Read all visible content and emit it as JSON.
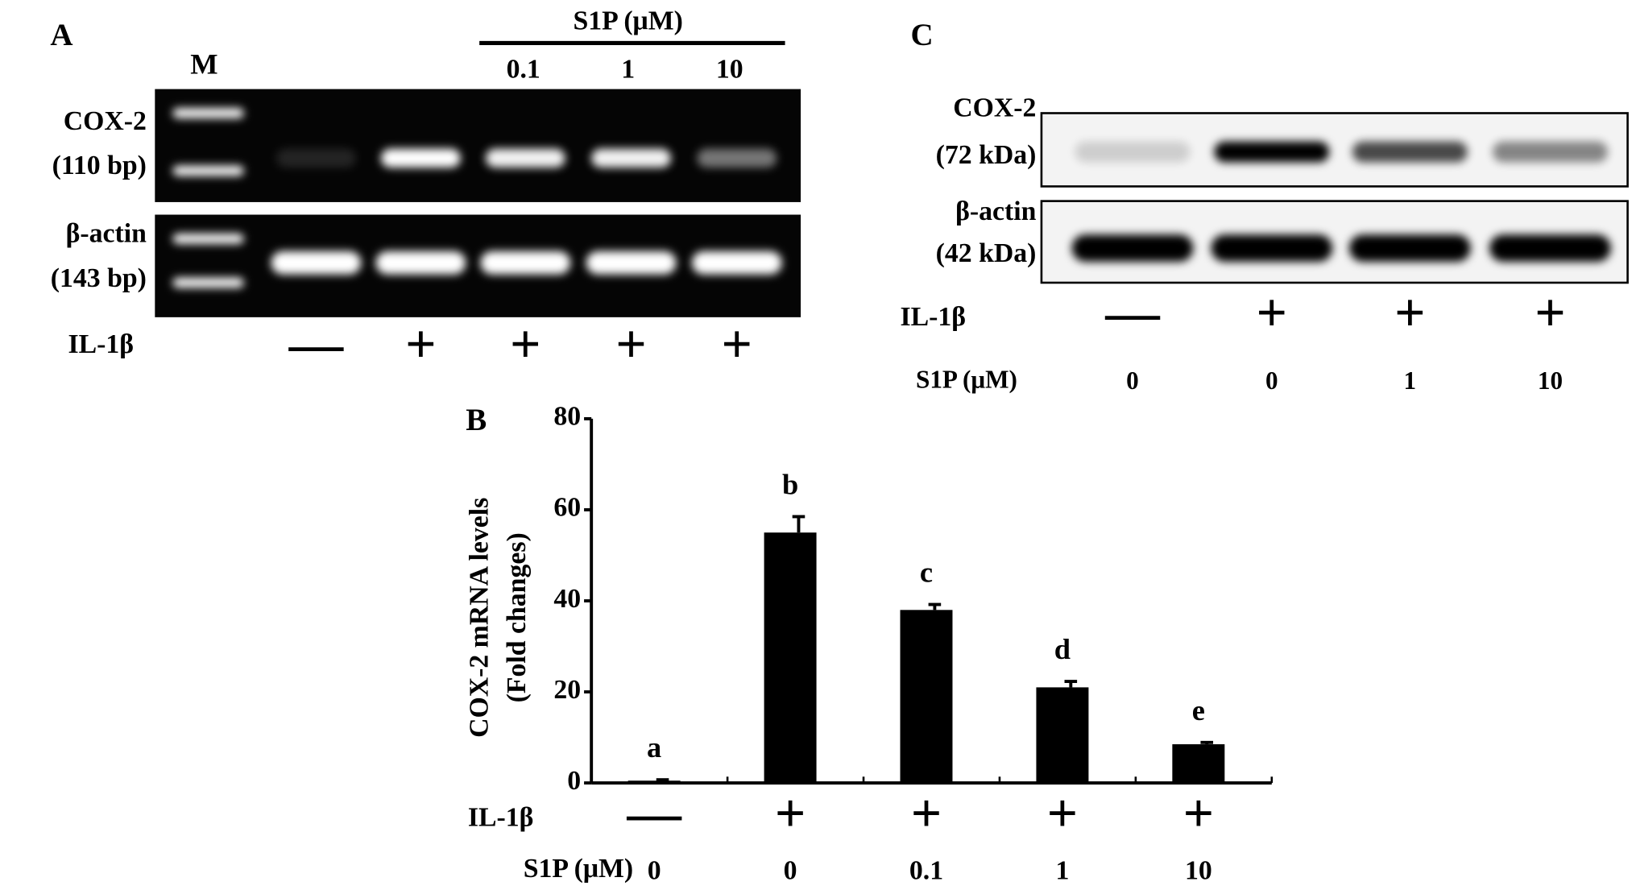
{
  "panel_a": {
    "label": "A",
    "marker": "M",
    "header": "S1P (μM)",
    "concentrations": [
      "0.1",
      "1",
      "10"
    ],
    "gel_labels": [
      "COX-2",
      "(110 bp)",
      "β-actin",
      "(143 bp)"
    ],
    "treatment_label": "IL-1β",
    "treatment": [
      "—",
      "+",
      "+",
      "+",
      "+"
    ]
  },
  "panel_c": {
    "label": "C",
    "blot_labels": [
      "COX-2",
      "(72 kDa)",
      "β-actin",
      "(42 kDa)"
    ],
    "treatment_label": "IL-1β",
    "treatment": [
      "—",
      "+",
      "+",
      "+"
    ],
    "dose_label": "S1P (μM)",
    "doses": [
      "0",
      "0",
      "1",
      "10"
    ]
  },
  "chart_data": {
    "type": "bar",
    "panel_label": "B",
    "y_label": [
      "COX-2 mRNA levels",
      "(Fold changes)"
    ],
    "categories": [
      "0",
      "0",
      "0.1",
      "1",
      "10"
    ],
    "category_axis_label": "S1P (μM)",
    "treatment_label": "IL-1β",
    "treatment": [
      "—",
      "+",
      "+",
      "+",
      "+"
    ],
    "values": [
      0.5,
      55,
      38,
      21,
      8.5
    ],
    "errors": [
      0.2,
      3.5,
      1.2,
      1.3,
      0.4
    ],
    "annotations": [
      "a",
      "b",
      "c",
      "d",
      "e"
    ],
    "color": "#000000",
    "ylim": [
      0,
      80
    ],
    "yticks": [
      0,
      20,
      40,
      60,
      80
    ]
  }
}
